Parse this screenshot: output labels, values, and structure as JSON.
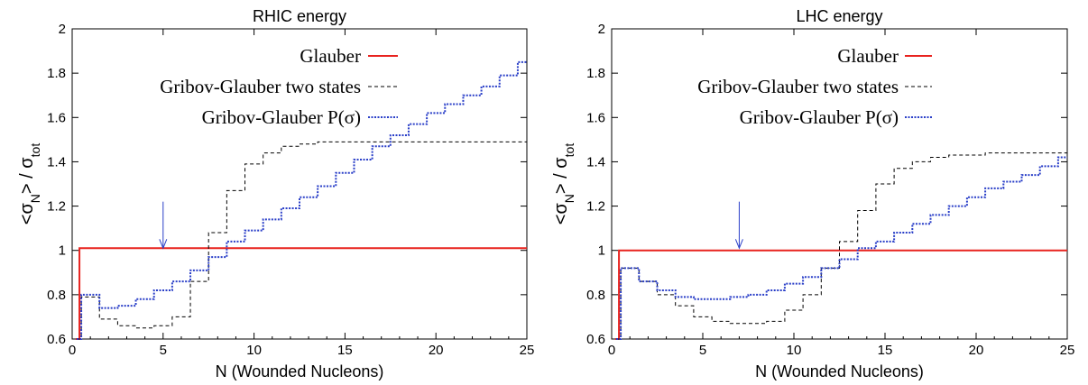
{
  "chart_data": [
    {
      "type": "line",
      "title": "RHIC energy",
      "xlabel": "N (Wounded Nucleons)",
      "ylabel_main": "<σ",
      "ylabel_sub1": "N",
      "ylabel_mid": "> / σ",
      "ylabel_sub2": "tot",
      "xlim": [
        0,
        25
      ],
      "ylim": [
        0.6,
        2
      ],
      "xticks": [
        "0",
        "5",
        "10",
        "15",
        "20",
        "25"
      ],
      "yticks": [
        "0.6",
        "0.8",
        "1",
        "1.2",
        "1.4",
        "1.6",
        "1.8",
        "2"
      ],
      "legend_position": "top-right",
      "annotation": {
        "type": "arrow",
        "x": 5,
        "y_from": 1.22,
        "y_to": 1.01
      },
      "series": [
        {
          "name": "Glauber",
          "style": "solid",
          "color": "#e8231f",
          "x": [
            0.2,
            0.4,
            25
          ],
          "y": [
            0.6,
            1.01,
            1.01
          ]
        },
        {
          "name": "Gribov-Glauber two states",
          "style": "dashed",
          "color": "#000000",
          "x": [
            0.25,
            0.5,
            1.5,
            2.5,
            3.5,
            4.5,
            5.5,
            6.5,
            7.5,
            8.5,
            9.5,
            10.5,
            11.5,
            12.5,
            13.5,
            14.5,
            15.5,
            16.5,
            25
          ],
          "y": [
            0.6,
            0.79,
            0.69,
            0.66,
            0.65,
            0.66,
            0.7,
            0.86,
            1.08,
            1.27,
            1.39,
            1.44,
            1.47,
            1.48,
            1.49,
            1.49,
            1.49,
            1.49,
            1.49
          ]
        },
        {
          "name": "Gribov-Glauber P(σ)",
          "style": "dotted",
          "color": "#2a3fc8",
          "x": [
            0.25,
            0.5,
            1.5,
            2.5,
            3.5,
            4.5,
            5.5,
            6.5,
            7.5,
            8.5,
            9.5,
            10.5,
            11.5,
            12.5,
            13.5,
            14.5,
            15.5,
            16.5,
            17.5,
            18.5,
            19.5,
            20.5,
            21.5,
            22.5,
            23.5,
            24.5,
            25
          ],
          "y": [
            0.6,
            0.8,
            0.74,
            0.75,
            0.78,
            0.82,
            0.86,
            0.91,
            0.97,
            1.04,
            1.09,
            1.14,
            1.19,
            1.24,
            1.29,
            1.35,
            1.41,
            1.47,
            1.52,
            1.57,
            1.62,
            1.66,
            1.7,
            1.74,
            1.79,
            1.85,
            1.85
          ]
        }
      ]
    },
    {
      "type": "line",
      "title": "LHC energy",
      "xlabel": "N (Wounded Nucleons)",
      "ylabel_main": "<σ",
      "ylabel_sub1": "N",
      "ylabel_mid": "> / σ",
      "ylabel_sub2": "tot",
      "xlim": [
        0,
        25
      ],
      "ylim": [
        0.6,
        2
      ],
      "xticks": [
        "0",
        "5",
        "10",
        "15",
        "20",
        "25"
      ],
      "yticks": [
        "0.6",
        "0.8",
        "1",
        "1.2",
        "1.4",
        "1.6",
        "1.8",
        "2"
      ],
      "legend_position": "top-right",
      "annotation": {
        "type": "arrow",
        "x": 7,
        "y_from": 1.22,
        "y_to": 1.01
      },
      "series": [
        {
          "name": "Glauber",
          "style": "solid",
          "color": "#e8231f",
          "x": [
            0.2,
            0.4,
            25
          ],
          "y": [
            0.6,
            1.0,
            1.0
          ]
        },
        {
          "name": "Gribov-Glauber two states",
          "style": "dashed",
          "color": "#000000",
          "x": [
            0.25,
            0.5,
            1.5,
            2.5,
            3.5,
            4.5,
            5.5,
            6.5,
            7.5,
            8.5,
            9.5,
            10.5,
            11.5,
            12.5,
            13.5,
            14.5,
            15.5,
            16.5,
            17.5,
            18.5,
            19.5,
            20.5,
            21.5,
            22.5,
            23.5,
            24.5,
            25
          ],
          "y": [
            0.6,
            0.92,
            0.86,
            0.8,
            0.75,
            0.7,
            0.68,
            0.67,
            0.67,
            0.68,
            0.73,
            0.8,
            0.92,
            1.04,
            1.18,
            1.3,
            1.37,
            1.4,
            1.42,
            1.43,
            1.43,
            1.44,
            1.44,
            1.44,
            1.44,
            1.44,
            1.44
          ]
        },
        {
          "name": "Gribov-Glauber P(σ)",
          "style": "dotted",
          "color": "#2a3fc8",
          "x": [
            0.25,
            0.5,
            1.5,
            2.5,
            3.5,
            4.5,
            5.5,
            6.5,
            7.5,
            8.5,
            9.5,
            10.5,
            11.5,
            12.5,
            13.5,
            14.5,
            15.5,
            16.5,
            17.5,
            18.5,
            19.5,
            20.5,
            21.5,
            22.5,
            23.5,
            24.5,
            25
          ],
          "y": [
            0.6,
            0.92,
            0.86,
            0.82,
            0.79,
            0.78,
            0.78,
            0.79,
            0.8,
            0.82,
            0.85,
            0.88,
            0.92,
            0.96,
            1.01,
            1.04,
            1.08,
            1.12,
            1.16,
            1.2,
            1.24,
            1.28,
            1.31,
            1.34,
            1.38,
            1.42,
            1.42
          ]
        }
      ]
    }
  ]
}
